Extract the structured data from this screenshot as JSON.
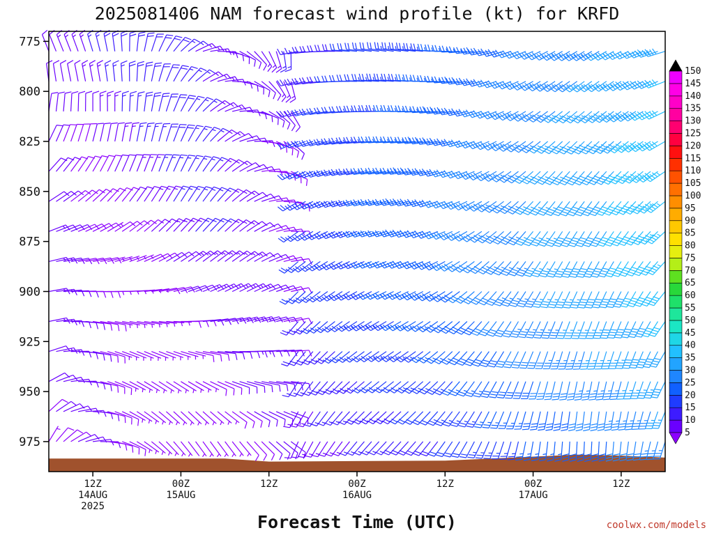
{
  "chart_data": {
    "type": "wind_barb_profile",
    "title": "2025081406 NAM forecast wind profile (kt) for KRFD",
    "xlabel": "Forecast Time (UTC)",
    "credit": "coolwx.com/models",
    "y_axis": {
      "label": "",
      "scale": "pressure (hPa), inverted",
      "range": [
        990,
        770
      ],
      "ticks": [
        775,
        800,
        825,
        850,
        875,
        900,
        925,
        950,
        975
      ]
    },
    "x_axis": {
      "range_hours_utc": [
        "2025-08-14 06Z",
        "2025-08-17 18Z"
      ],
      "ticks": [
        {
          "time": "2025-08-14 12Z",
          "lines": [
            "12Z",
            "14AUG",
            "2025"
          ]
        },
        {
          "time": "2025-08-15 00Z",
          "lines": [
            "00Z",
            "15AUG"
          ]
        },
        {
          "time": "2025-08-15 12Z",
          "lines": [
            "12Z"
          ]
        },
        {
          "time": "2025-08-16 00Z",
          "lines": [
            "00Z",
            "16AUG"
          ]
        },
        {
          "time": "2025-08-16 12Z",
          "lines": [
            "12Z"
          ]
        },
        {
          "time": "2025-08-17 00Z",
          "lines": [
            "00Z",
            "17AUG"
          ]
        },
        {
          "time": "2025-08-17 12Z",
          "lines": [
            "12Z"
          ]
        }
      ]
    },
    "colorbar": {
      "units": "kt",
      "levels": [
        5,
        10,
        15,
        20,
        25,
        30,
        35,
        40,
        45,
        50,
        55,
        60,
        65,
        70,
        75,
        80,
        85,
        90,
        95,
        100,
        105,
        110,
        115,
        120,
        125,
        130,
        135,
        140,
        145,
        150
      ],
      "colors": [
        "#8c00ff",
        "#6a00ff",
        "#3d1cff",
        "#1f3cff",
        "#1060ff",
        "#1f86ff",
        "#22a4ff",
        "#22c0ff",
        "#1fd6e6",
        "#1be6c4",
        "#1ee69b",
        "#1fe06a",
        "#28d83a",
        "#5ee020",
        "#b4ee18",
        "#e6ee10",
        "#ffe000",
        "#ffc800",
        "#ffac00",
        "#ff8e00",
        "#ff7000",
        "#ff5200",
        "#ff3000",
        "#ff1010",
        "#ff0040",
        "#ff0070",
        "#ff00a0",
        "#ff00c8",
        "#ff00e6",
        "#ee00ff"
      ],
      "top_arrow": "#000000",
      "bottom_arrow": "#8c00ff"
    },
    "barb_grid": {
      "time_step_hours": 1,
      "first_time": "2025-08-14 06Z",
      "last_time": "2025-08-17 18Z",
      "pressure_levels": [
        975,
        960,
        945,
        930,
        915,
        900,
        885,
        870,
        855,
        840,
        825,
        810,
        795,
        780
      ]
    },
    "terrain": {
      "color": "#a0522d",
      "surface_pressure": [
        {
          "time": "2025-08-14 06Z",
          "p": 983.5
        },
        {
          "time": "2025-08-15 06Z",
          "p": 983.5
        },
        {
          "time": "2025-08-15 12Z",
          "p": 985.0
        },
        {
          "time": "2025-08-16 12Z",
          "p": 984.5
        },
        {
          "time": "2025-08-17 00Z",
          "p": 982.5
        },
        {
          "time": "2025-08-17 06Z",
          "p": 981.5
        },
        {
          "time": "2025-08-17 12Z",
          "p": 982.0
        },
        {
          "time": "2025-08-17 18Z",
          "p": 983.0
        }
      ]
    }
  }
}
